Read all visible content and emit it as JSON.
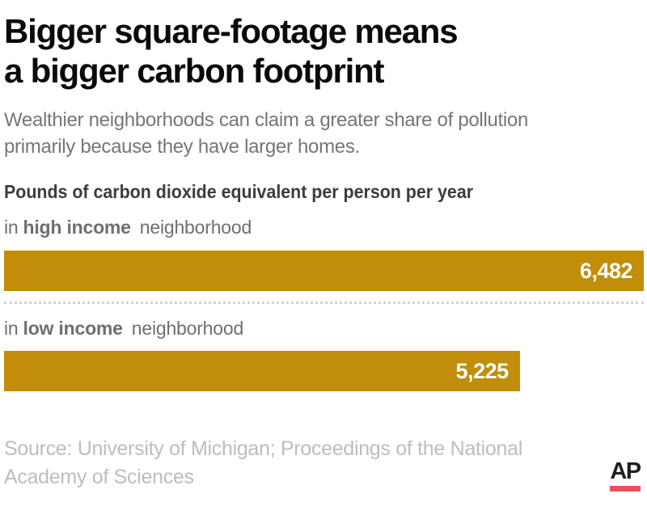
{
  "header": {
    "title_line1": "Bigger square-footage means",
    "title_line2": "a bigger carbon footprint",
    "subtitle_line1": "Wealthier neighborhoods can claim a greater share of pollution",
    "subtitle_line2": "primarily because they have larger homes."
  },
  "chart": {
    "heading": "Pounds of carbon dioxide equivalent per person per year",
    "bar_color": "#c28d08",
    "value_text_color": "#ffffff",
    "rows": [
      {
        "prefix": "in",
        "emphasis": "high income",
        "suffix": "neighborhood",
        "value_label": "6,482"
      },
      {
        "prefix": "in",
        "emphasis": "low income",
        "suffix": "neighborhood",
        "value_label": "5,225"
      }
    ]
  },
  "footer": {
    "source_line1": "Source: University of Michigan; Proceedings of the National",
    "source_line2": "Academy of Sciences",
    "logo_text": "AP",
    "logo_underline_color": "#e9525d"
  },
  "chart_data": {
    "type": "bar",
    "orientation": "horizontal",
    "title": "Bigger square-footage means a bigger carbon footprint",
    "subtitle": "Wealthier neighborhoods can claim a greater share of pollution primarily because they have larger homes.",
    "axis_label": "Pounds of carbon dioxide equivalent per person per year",
    "categories": [
      "high income neighborhood",
      "low income neighborhood"
    ],
    "values": [
      6482,
      5225
    ],
    "value_labels": [
      "6,482",
      "5,225"
    ],
    "xlim": [
      0,
      6482
    ],
    "bar_color": "#c28d08",
    "grid": false,
    "legend": false,
    "source": "Source: University of Michigan; Proceedings of the National Academy of Sciences"
  }
}
